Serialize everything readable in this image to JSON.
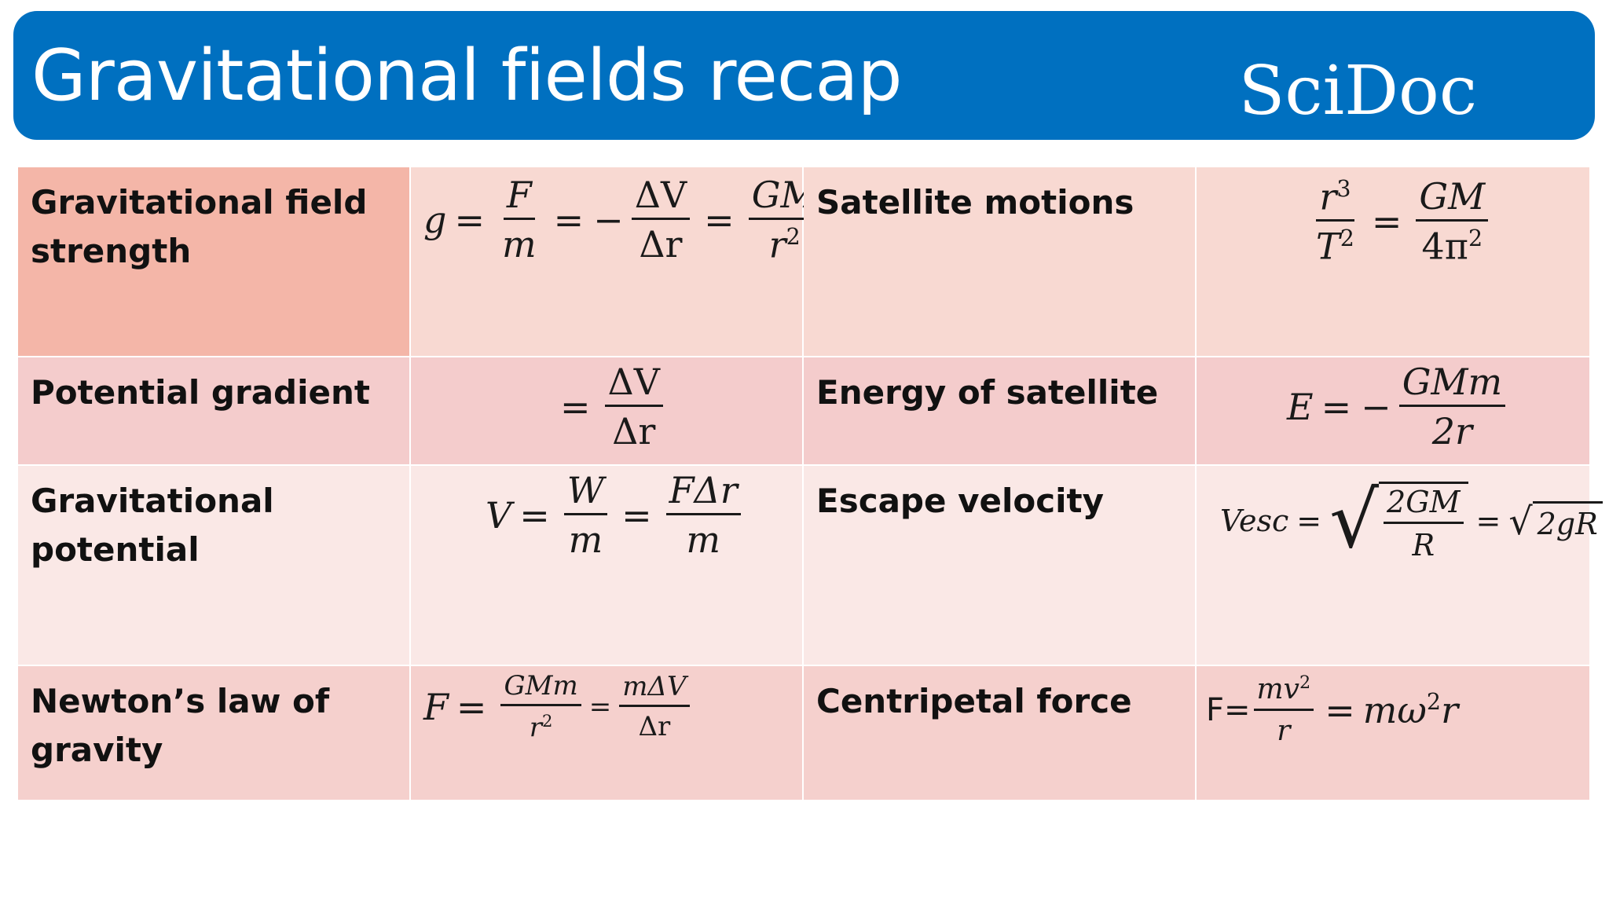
{
  "header": {
    "title": "Gravitational fields recap",
    "brand": "SciDoc",
    "color": "#0070c0"
  },
  "rows": [
    {
      "left_label": "Gravitational field strength",
      "right_label": "Satellite motions"
    },
    {
      "left_label": "Potential gradient",
      "right_label": "Energy of satellite"
    },
    {
      "left_label": "Gravitational potential",
      "right_label": "Escape velocity"
    },
    {
      "left_label": "Newton’s law of gravity",
      "right_label": "Centripetal force"
    }
  ],
  "formulas": {
    "field_strength": {
      "g": "g",
      "eq": "=",
      "F": "F",
      "m": "m",
      "minus": "−",
      "dV": "ΔV",
      "dr": "Δr",
      "GM": "GM",
      "r": "r",
      "sq": "2"
    },
    "satellite_motions": {
      "r": "r",
      "cube": "3",
      "T": "T",
      "sq": "2",
      "eq": "=",
      "GM": "GM",
      "fourpi": "4π",
      "sq2": "2"
    },
    "potential_gradient": {
      "eq": "=",
      "dV": "ΔV",
      "dr": "Δr"
    },
    "energy_satellite": {
      "E": "E",
      "eq": "=",
      "minus": "−",
      "GMm": "GMm",
      "two_r": "2r"
    },
    "grav_potential": {
      "V": "V",
      "eq": "=",
      "W": "W",
      "m": "m",
      "eq2": "=",
      "Fdr": "FΔr",
      "m2": "m"
    },
    "escape_velocity": {
      "Vesc": "Vesc",
      "eq": "=",
      "twoGM": "2GM",
      "R": "R",
      "eq2": "=",
      "twogR": "2gR"
    },
    "newton_law": {
      "F": "F",
      "eq": "=",
      "GMm": "GMm",
      "r": "r",
      "sq": "2",
      "eq2": "=",
      "mdV": "mΔV",
      "dr": "Δr"
    },
    "centripetal": {
      "F": "F=",
      "mv": "mv",
      "sq": "2",
      "r": "r",
      "eq": "=",
      "momega": "mω",
      "sq2": "2",
      "r2": "r"
    }
  }
}
